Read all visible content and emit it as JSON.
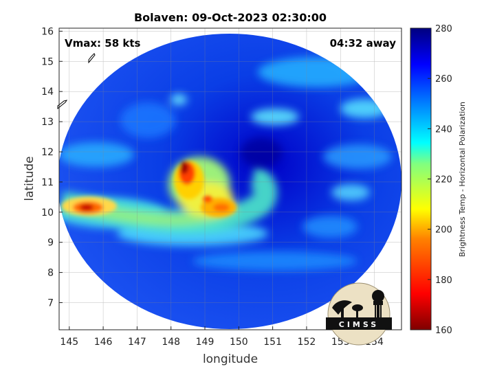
{
  "title": "Bolaven: 09-Oct-2023 02:30:00",
  "vmax_text": "Vmax: 58 kts",
  "time_away_text": "04:32 away",
  "chart_data": {
    "type": "heatmap",
    "xlabel": "longitude",
    "ylabel": "latitude",
    "xlim": [
      144.7,
      154.8
    ],
    "ylim": [
      6.1,
      16.1
    ],
    "xticks": [
      "145",
      "146",
      "147",
      "148",
      "149",
      "150",
      "151",
      "152",
      "153",
      "154"
    ],
    "yticks": [
      "7",
      "8",
      "9",
      "10",
      "11",
      "12",
      "13",
      "14",
      "15",
      "16"
    ],
    "grid": true,
    "colorbar": {
      "label": "Brightness Temp - Horizontal Polarization",
      "range": [
        160,
        280
      ],
      "ticks": [
        "160",
        "180",
        "200",
        "220",
        "240",
        "260",
        "280"
      ],
      "colormap": "jet"
    },
    "storm_center_approx": {
      "lon": 150.6,
      "lat": 11.5
    }
  },
  "logo": {
    "text": "CIMSS"
  },
  "colors": {
    "background": "#ffffff",
    "frame": "#000000"
  }
}
